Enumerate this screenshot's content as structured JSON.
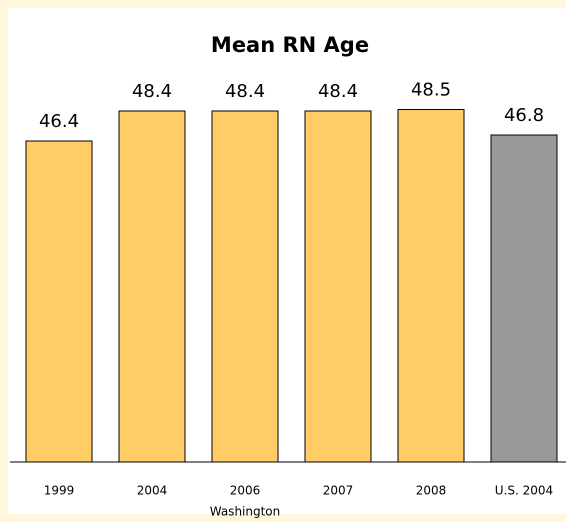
{
  "chart_data": {
    "type": "bar",
    "title": "Mean RN Age",
    "categories": [
      "1999",
      "2004",
      "2006",
      "2007",
      "2008",
      "U.S. 2004"
    ],
    "values": [
      46.4,
      48.4,
      48.4,
      48.4,
      48.5,
      46.8
    ],
    "colors": [
      "#ffcc66",
      "#ffcc66",
      "#ffcc66",
      "#ffcc66",
      "#ffcc66",
      "#999999"
    ],
    "group_label": "Washington",
    "ylim": [
      25,
      50
    ]
  }
}
